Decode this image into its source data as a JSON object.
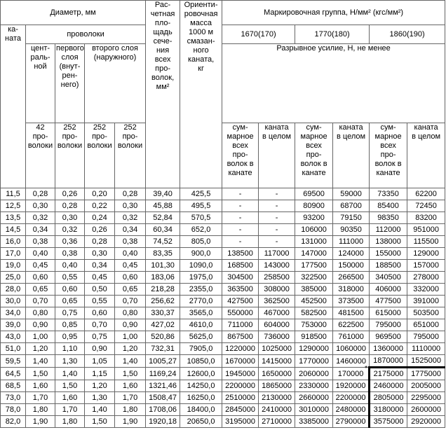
{
  "header": {
    "diameter": "Диаметр, мм",
    "area": "Рас-\nчетная\nпло-\nщадь\nсече-\nния\nвсех\nпро-\nволок,\nмм²",
    "mass": "Ориенти-\nровочная\nмасса\n1000 м\nсмазан-\nного\nканата,\nкг",
    "group": "Маркировочная группа, Н/мм² (кгс/мм²)",
    "rope": "ка-\nната",
    "wires": "проволоки",
    "groups": [
      "1670(170)",
      "1770(180)",
      "1860(190)"
    ],
    "central": "цент-\nраль-\nной",
    "first": "первого\nслоя\n(внут-\nрен-\nнего)",
    "second": "второго слоя\n(наружного)",
    "force": "Разрывное усилие, Н, не менее",
    "counts": [
      "42\nпро-\nволоки",
      "252\nпро-\nволоки",
      "252\nпро-\nволоки",
      "252\nпро-\nволоки"
    ],
    "sub_headers": [
      "сум-\nмарное\nвсех\nпро-\nволок в\nканате",
      "каната\nв целом",
      "сум-\nмарное\nвсех\nпро-\nволок в\nканате",
      "каната\nв целом",
      "сум-\nмарное\nвсех\nпро-\nволок в\nканате",
      "каната\nв целом"
    ]
  },
  "table": {
    "rows": [
      [
        "11,5",
        "0,28",
        "0,26",
        "0,20",
        "0,28",
        "39,40",
        "425,5",
        "-",
        "-",
        "69500",
        "59000",
        "73350",
        "62200"
      ],
      [
        "12,5",
        "0,30",
        "0,28",
        "0,22",
        "0,30",
        "45,88",
        "495,5",
        "-",
        "-",
        "80900",
        "68700",
        "85400",
        "72450"
      ],
      [
        "13,5",
        "0,32",
        "0,30",
        "0,24",
        "0,32",
        "52,84",
        "570,5",
        "-",
        "-",
        "93200",
        "79150",
        "98350",
        "83200"
      ],
      [
        "14,5",
        "0,34",
        "0,32",
        "0,26",
        "0,34",
        "60,34",
        "652,0",
        "-",
        "-",
        "106000",
        "90350",
        "112000",
        "951000"
      ],
      [
        "16,0",
        "0,38",
        "0,36",
        "0,28",
        "0,38",
        "74,52",
        "805,0",
        "-",
        "-",
        "131000",
        "111000",
        "138000",
        "115500"
      ],
      [
        "17,0",
        "0,40",
        "0,38",
        "0,30",
        "0,40",
        "83,35",
        "900,0",
        "138500",
        "117000",
        "147000",
        "124000",
        "155000",
        "129000"
      ],
      [
        "19,0",
        "0,45",
        "0,40",
        "0,34",
        "0,45",
        "101,30",
        "1090,0",
        "168500",
        "143000",
        "177500",
        "150000",
        "188500",
        "157000"
      ],
      [
        "25,0",
        "0,60",
        "0,55",
        "0,45",
        "0,60",
        "183,06",
        "1975,0",
        "304500",
        "258500",
        "322500",
        "266500",
        "340500",
        "278000"
      ],
      [
        "28,0",
        "0,65",
        "0,60",
        "0,50",
        "0,65",
        "218,28",
        "2355,0",
        "363500",
        "308000",
        "385000",
        "318000",
        "406000",
        "332000"
      ],
      [
        "30,0",
        "0,70",
        "0,65",
        "0,55",
        "0,70",
        "256,62",
        "2770,0",
        "427500",
        "362500",
        "452500",
        "373500",
        "477500",
        "391000"
      ],
      [
        "34,0",
        "0,80",
        "0,75",
        "0,60",
        "0,80",
        "330,37",
        "3565,0",
        "550000",
        "467000",
        "582500",
        "481500",
        "615000",
        "503500"
      ],
      [
        "39,0",
        "0,90",
        "0,85",
        "0,70",
        "0,90",
        "427,02",
        "4610,0",
        "711000",
        "604000",
        "753000",
        "622500",
        "795000",
        "651000"
      ],
      [
        "43,0",
        "1,00",
        "0,95",
        "0,75",
        "1,00",
        "520,86",
        "5625,0",
        "867500",
        "736000",
        "918500",
        "761000",
        "969500",
        "795000"
      ],
      [
        "51,0",
        "1,20",
        "1,10",
        "0,90",
        "1,20",
        "732,31",
        "7905,0",
        "1220000",
        "1025000",
        "1290000",
        "1060000",
        "1360000",
        "1110000"
      ],
      [
        "59,5",
        "1,40",
        "1,30",
        "1,05",
        "1,40",
        "1005,27",
        "10850,0",
        "1670000",
        "1415000",
        "1770000",
        "1460000",
        "1870000",
        "1525000"
      ],
      [
        "64,5",
        "1,50",
        "1,40",
        "1,15",
        "1,50",
        "1169,24",
        "12600,0",
        "1945000",
        "1650000",
        "2060000",
        "170000",
        "2175000",
        "1775000"
      ],
      [
        "68,5",
        "1,60",
        "1,50",
        "1,20",
        "1,60",
        "1321,46",
        "14250,0",
        "2200000",
        "1865000",
        "2330000",
        "1920000",
        "2460000",
        "2005000"
      ],
      [
        "73,0",
        "1,70",
        "1,60",
        "1,30",
        "1,70",
        "1508,47",
        "16250,0",
        "2510000",
        "2130000",
        "2660000",
        "2200000",
        "2805000",
        "2295000"
      ],
      [
        "78,0",
        "1,80",
        "1,70",
        "1,40",
        "1,80",
        "1708,06",
        "18400,0",
        "2845000",
        "2410000",
        "3010000",
        "2480000",
        "3180000",
        "2600000"
      ],
      [
        "82,0",
        "1,90",
        "1,80",
        "1,50",
        "1,90",
        "1920,18",
        "20650,0",
        "3195000",
        "2710000",
        "3385000",
        "2790000",
        "3575000",
        "2920000"
      ]
    ]
  },
  "note_mark": "*"
}
